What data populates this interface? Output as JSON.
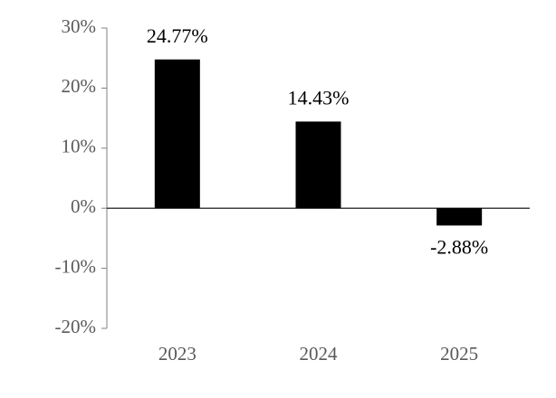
{
  "chart_data": {
    "type": "bar",
    "categories": [
      "2023",
      "2024",
      "2025"
    ],
    "values": [
      24.77,
      14.43,
      -2.88
    ],
    "value_labels": [
      "24.77%",
      "14.43%",
      "-2.88%"
    ],
    "color": "#000000",
    "ylim": [
      -20,
      30
    ],
    "yticks": [
      {
        "value": -20,
        "label": "-20%"
      },
      {
        "value": -10,
        "label": "-10%"
      },
      {
        "value": 0,
        "label": "0%"
      },
      {
        "value": 10,
        "label": "10%"
      },
      {
        "value": 20,
        "label": "20%"
      },
      {
        "value": 30,
        "label": "30%"
      }
    ],
    "grid": false
  }
}
